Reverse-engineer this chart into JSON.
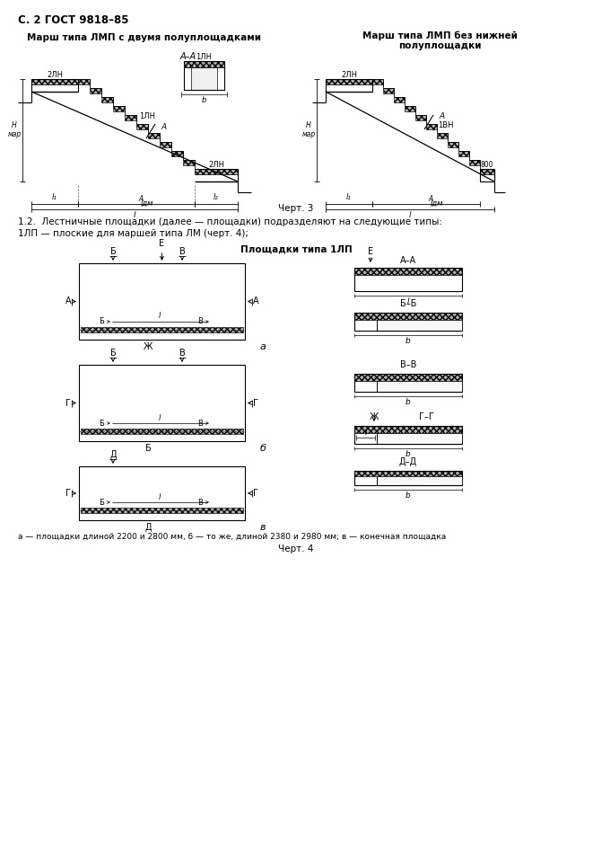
{
  "page_header": "С. 2 ГОСТ 9818–85",
  "title_left": "Марш типа ЛМП с двумя полуплощадками",
  "title_right_1": "Марш типа ЛМП без нижней",
  "title_right_2": "полуплощадки",
  "chart3_label": "Черт. 3",
  "text_line1": "1.2.  Лестничные площадки (далее — площадки) подразделяют на следующие типы:",
  "text_line2": "1ЛП — плоские для маршей типа ЛМ (черт. 4);",
  "title_chart4": "Площадки типа 1ЛП",
  "chart4_label": "Черт. 4",
  "caption_chart4": "а — площадки длиной 2200 и 2800 мм, б — то же, длиной 2380 и 2980 мм; в — конечная площадка",
  "bg_color": "#ffffff"
}
